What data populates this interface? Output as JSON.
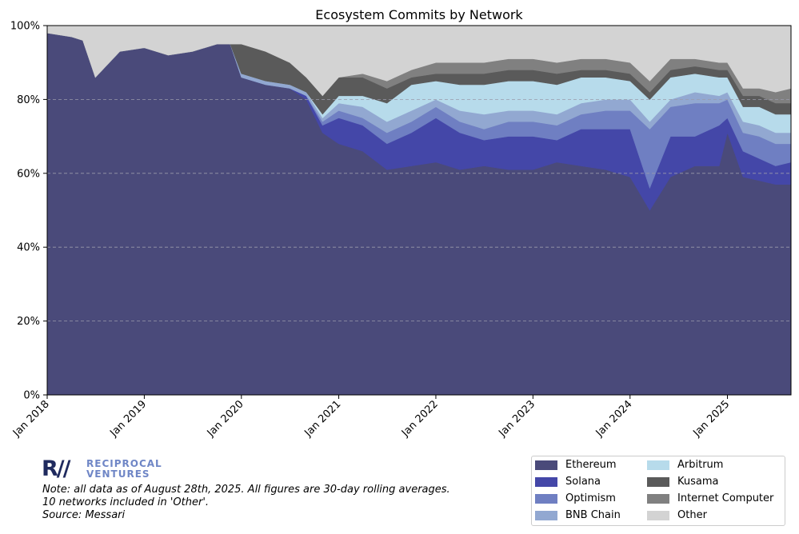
{
  "chart_data": {
    "type": "area",
    "stacked": true,
    "normalized": true,
    "title": "Ecosystem Commits by Network",
    "xlabel": "",
    "ylabel": "",
    "x_ticks": [
      "Jan 2018",
      "Jan 2019",
      "Jan 2020",
      "Jan 2021",
      "Jan 2022",
      "Jan 2023",
      "Jan 2024",
      "Jan 2025"
    ],
    "y_ticks": [
      "0%",
      "20%",
      "40%",
      "60%",
      "80%",
      "100%"
    ],
    "xlim": [
      "2018-01-01",
      "2025-08-28"
    ],
    "ylim": [
      0,
      100
    ],
    "grid": "horizontal dashed",
    "legend_position": "bottom-right",
    "x": [
      "2018-01-01",
      "2018-04-01",
      "2018-05-15",
      "2018-07-01",
      "2018-10-01",
      "2019-01-01",
      "2019-04-01",
      "2019-07-01",
      "2019-10-01",
      "2019-11-20",
      "2020-01-01",
      "2020-04-01",
      "2020-07-01",
      "2020-09-01",
      "2020-11-01",
      "2021-01-01",
      "2021-04-01",
      "2021-07-01",
      "2021-10-01",
      "2022-01-01",
      "2022-04-01",
      "2022-07-01",
      "2022-10-01",
      "2023-01-01",
      "2023-04-01",
      "2023-07-01",
      "2023-10-01",
      "2024-01-01",
      "2024-03-15",
      "2024-06-01",
      "2024-09-01",
      "2024-12-01",
      "2025-01-01",
      "2025-03-01",
      "2025-05-01",
      "2025-07-01",
      "2025-08-28"
    ],
    "series": [
      {
        "name": "Ethereum",
        "color": "#4a4a7a",
        "values": [
          98,
          97,
          96,
          86,
          93,
          94,
          92,
          93,
          95,
          95,
          86,
          84,
          83,
          80,
          71,
          68,
          66,
          61,
          62,
          63,
          61,
          62,
          61,
          61,
          63,
          62,
          61,
          59,
          50,
          59,
          62,
          62,
          71,
          59,
          58,
          57,
          57
        ]
      },
      {
        "name": "Solana",
        "color": "#4447a8",
        "values": [
          0,
          0,
          0,
          0,
          0,
          0,
          0,
          0,
          0,
          0,
          0,
          0,
          0,
          1,
          2,
          7,
          7,
          7,
          9,
          12,
          10,
          7,
          9,
          9,
          6,
          10,
          11,
          13,
          6,
          11,
          8,
          11,
          4,
          7,
          6,
          5,
          6
        ]
      },
      {
        "name": "Optimism",
        "color": "#6f7fc2",
        "values": [
          0,
          0,
          0,
          0,
          0,
          0,
          0,
          0,
          0,
          0,
          0,
          0,
          0,
          0,
          1,
          2,
          2,
          3,
          3,
          3,
          3,
          3,
          4,
          4,
          4,
          4,
          5,
          5,
          16,
          8,
          9,
          6,
          5,
          5,
          6,
          6,
          5
        ]
      },
      {
        "name": "BNB Chain",
        "color": "#92a8d1",
        "values": [
          0,
          0,
          0,
          0,
          0,
          0,
          0,
          0,
          0,
          0,
          1,
          1,
          1,
          1,
          1,
          2,
          3,
          3,
          3,
          2,
          3,
          4,
          3,
          3,
          3,
          3,
          3,
          3,
          2,
          2,
          3,
          2,
          2,
          3,
          3,
          3,
          3
        ]
      },
      {
        "name": "Arbitrum",
        "color": "#b7dbeb",
        "values": [
          0,
          0,
          0,
          0,
          0,
          0,
          0,
          0,
          0,
          0,
          0,
          0,
          0,
          0,
          1,
          2,
          3,
          5,
          7,
          5,
          7,
          8,
          8,
          8,
          8,
          7,
          6,
          5,
          6,
          6,
          5,
          5,
          4,
          4,
          5,
          5,
          5
        ]
      },
      {
        "name": "Kusama",
        "color": "#5a5a5a",
        "values": [
          0,
          0,
          0,
          0,
          0,
          0,
          0,
          0,
          0,
          0,
          8,
          8,
          6,
          4,
          5,
          5,
          5,
          4,
          2,
          2,
          3,
          3,
          3,
          3,
          3,
          2,
          2,
          2,
          2,
          2,
          2,
          2,
          2,
          3,
          3,
          3,
          3
        ]
      },
      {
        "name": "Internet Computer",
        "color": "#808080",
        "values": [
          0,
          0,
          0,
          0,
          0,
          0,
          0,
          0,
          0,
          0,
          0,
          0,
          0,
          0,
          0,
          0,
          1,
          2,
          2,
          3,
          3,
          3,
          3,
          3,
          3,
          3,
          3,
          3,
          3,
          3,
          2,
          2,
          2,
          2,
          2,
          3,
          4
        ]
      },
      {
        "name": "Other",
        "color": "#d3d3d3",
        "values": [
          2,
          3,
          4,
          14,
          7,
          6,
          8,
          7,
          5,
          5,
          5,
          7,
          10,
          14,
          19,
          14,
          13,
          15,
          12,
          10,
          10,
          10,
          9,
          9,
          10,
          9,
          9,
          10,
          15,
          9,
          9,
          10,
          10,
          17,
          17,
          18,
          17
        ]
      }
    ]
  },
  "branding": {
    "logo_mark": "R//",
    "logo_line1": "RECIPROCAL",
    "logo_line2": "VENTURES"
  },
  "notes": [
    "Note: all data as of August 28th, 2025. All figures are 30-day rolling averages.",
    "10 networks included in 'Other'.",
    "Source: Messari"
  ]
}
